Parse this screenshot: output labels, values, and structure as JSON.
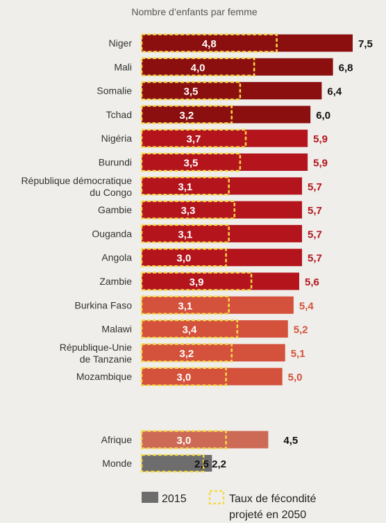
{
  "chart_data": {
    "type": "bar",
    "orientation": "horizontal",
    "title": "Nombre d’enfants par femme",
    "categories": [
      [
        "Niger"
      ],
      [
        "Mali"
      ],
      [
        "Somalie"
      ],
      [
        "Tchad"
      ],
      [
        "Nigéria"
      ],
      [
        "Burundi"
      ],
      [
        "République démocratique",
        "du Congo"
      ],
      [
        "Gambie"
      ],
      [
        "Ouganda"
      ],
      [
        "Angola"
      ],
      [
        "Zambie"
      ],
      [
        "Burkina Faso"
      ],
      [
        "Malawi"
      ],
      [
        "République-Unie",
        "de Tanzanie"
      ],
      [
        "Mozambique"
      ],
      [
        "Afrique"
      ],
      [
        "Monde"
      ]
    ],
    "series": [
      {
        "name": "2015",
        "values": [
          7.5,
          6.8,
          6.4,
          6.0,
          5.9,
          5.9,
          5.7,
          5.7,
          5.7,
          5.7,
          5.6,
          5.4,
          5.2,
          5.1,
          5.0,
          4.5,
          2.5
        ]
      },
      {
        "name": "Taux de fécondité projeté en 2050",
        "values": [
          4.8,
          4.0,
          3.5,
          3.2,
          3.7,
          3.5,
          3.1,
          3.3,
          3.1,
          3.0,
          3.9,
          3.1,
          3.4,
          3.2,
          3.0,
          3.0,
          2.2
        ]
      }
    ],
    "value_labels_2015": [
      "7,5",
      "6,8",
      "6,4",
      "6,0",
      "5,9",
      "5,9",
      "5,7",
      "5,7",
      "5,7",
      "5,7",
      "5,6",
      "5,4",
      "5,2",
      "5,1",
      "5,0",
      "4,5",
      "2,5"
    ],
    "value_labels_2050": [
      "4,8",
      "4,0",
      "3,5",
      "3,2",
      "3,7",
      "3,5",
      "3,1",
      "3,3",
      "3,1",
      "3,0",
      "3,9",
      "3,1",
      "3,4",
      "3,2",
      "3,0",
      "3,0",
      "2,2"
    ],
    "color_groups": [
      "dark",
      "dark",
      "dark",
      "dark",
      "mid",
      "mid",
      "mid",
      "mid",
      "mid",
      "mid",
      "mid",
      "light",
      "light",
      "light",
      "light",
      "africa",
      "world"
    ],
    "xlim": [
      0,
      7.5
    ]
  },
  "colors": {
    "dark": "#8b0f0f",
    "mid": "#b4141c",
    "light": "#d4513b",
    "africa": "#cc6a55",
    "world": "#6d6d6d",
    "dash": "#f5d94a",
    "value_dark": "#111111"
  },
  "legend": {
    "series_2015": "2015",
    "projection_line1": "Taux de fécondité",
    "projection_line2": "projeté en 2050"
  }
}
